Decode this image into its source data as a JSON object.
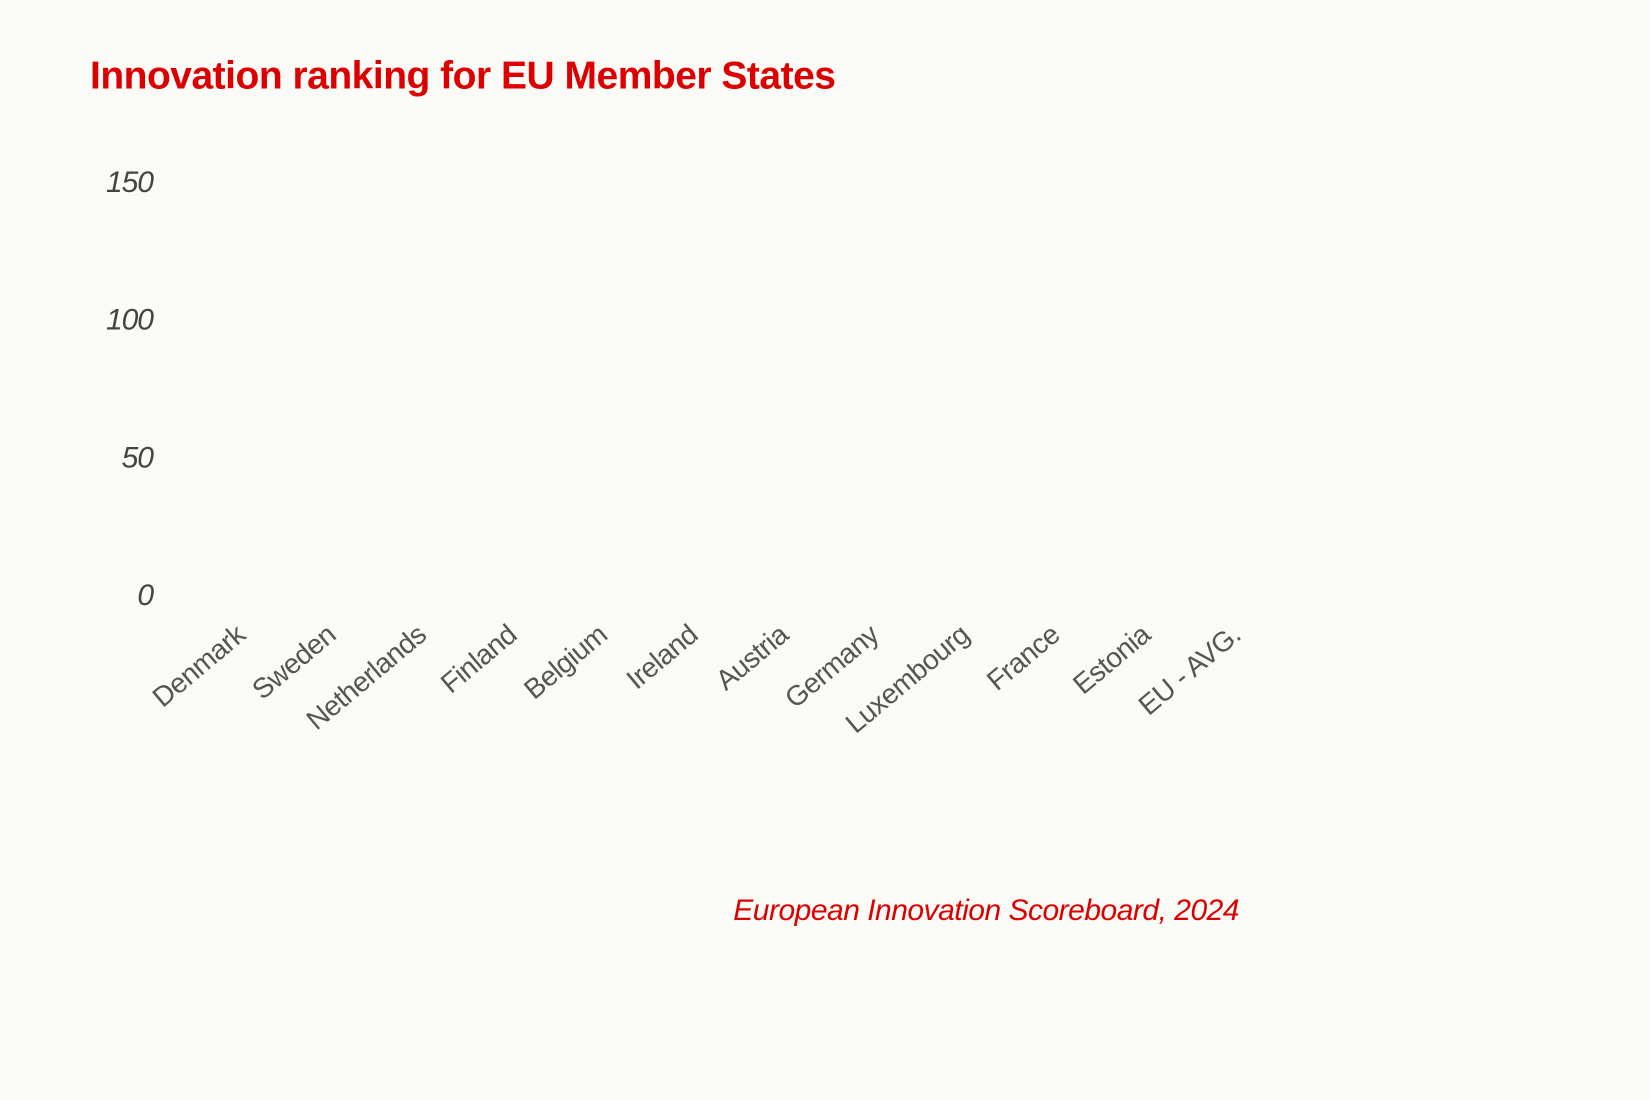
{
  "chart_data": {
    "type": "bar",
    "title": "Innovation ranking for EU Member States",
    "source": "European Innovation Scoreboard, 2024",
    "categories": [
      "Denmark",
      "Sweden",
      "Netherlands",
      "Finland",
      "Belgium",
      "Ireland",
      "Austria",
      "Germany",
      "Luxembourg",
      "France",
      "Estonia",
      "EU - AVG."
    ],
    "ylim": [
      0,
      150
    ],
    "yticks": [
      0,
      50,
      100,
      150
    ],
    "grid": false
  }
}
